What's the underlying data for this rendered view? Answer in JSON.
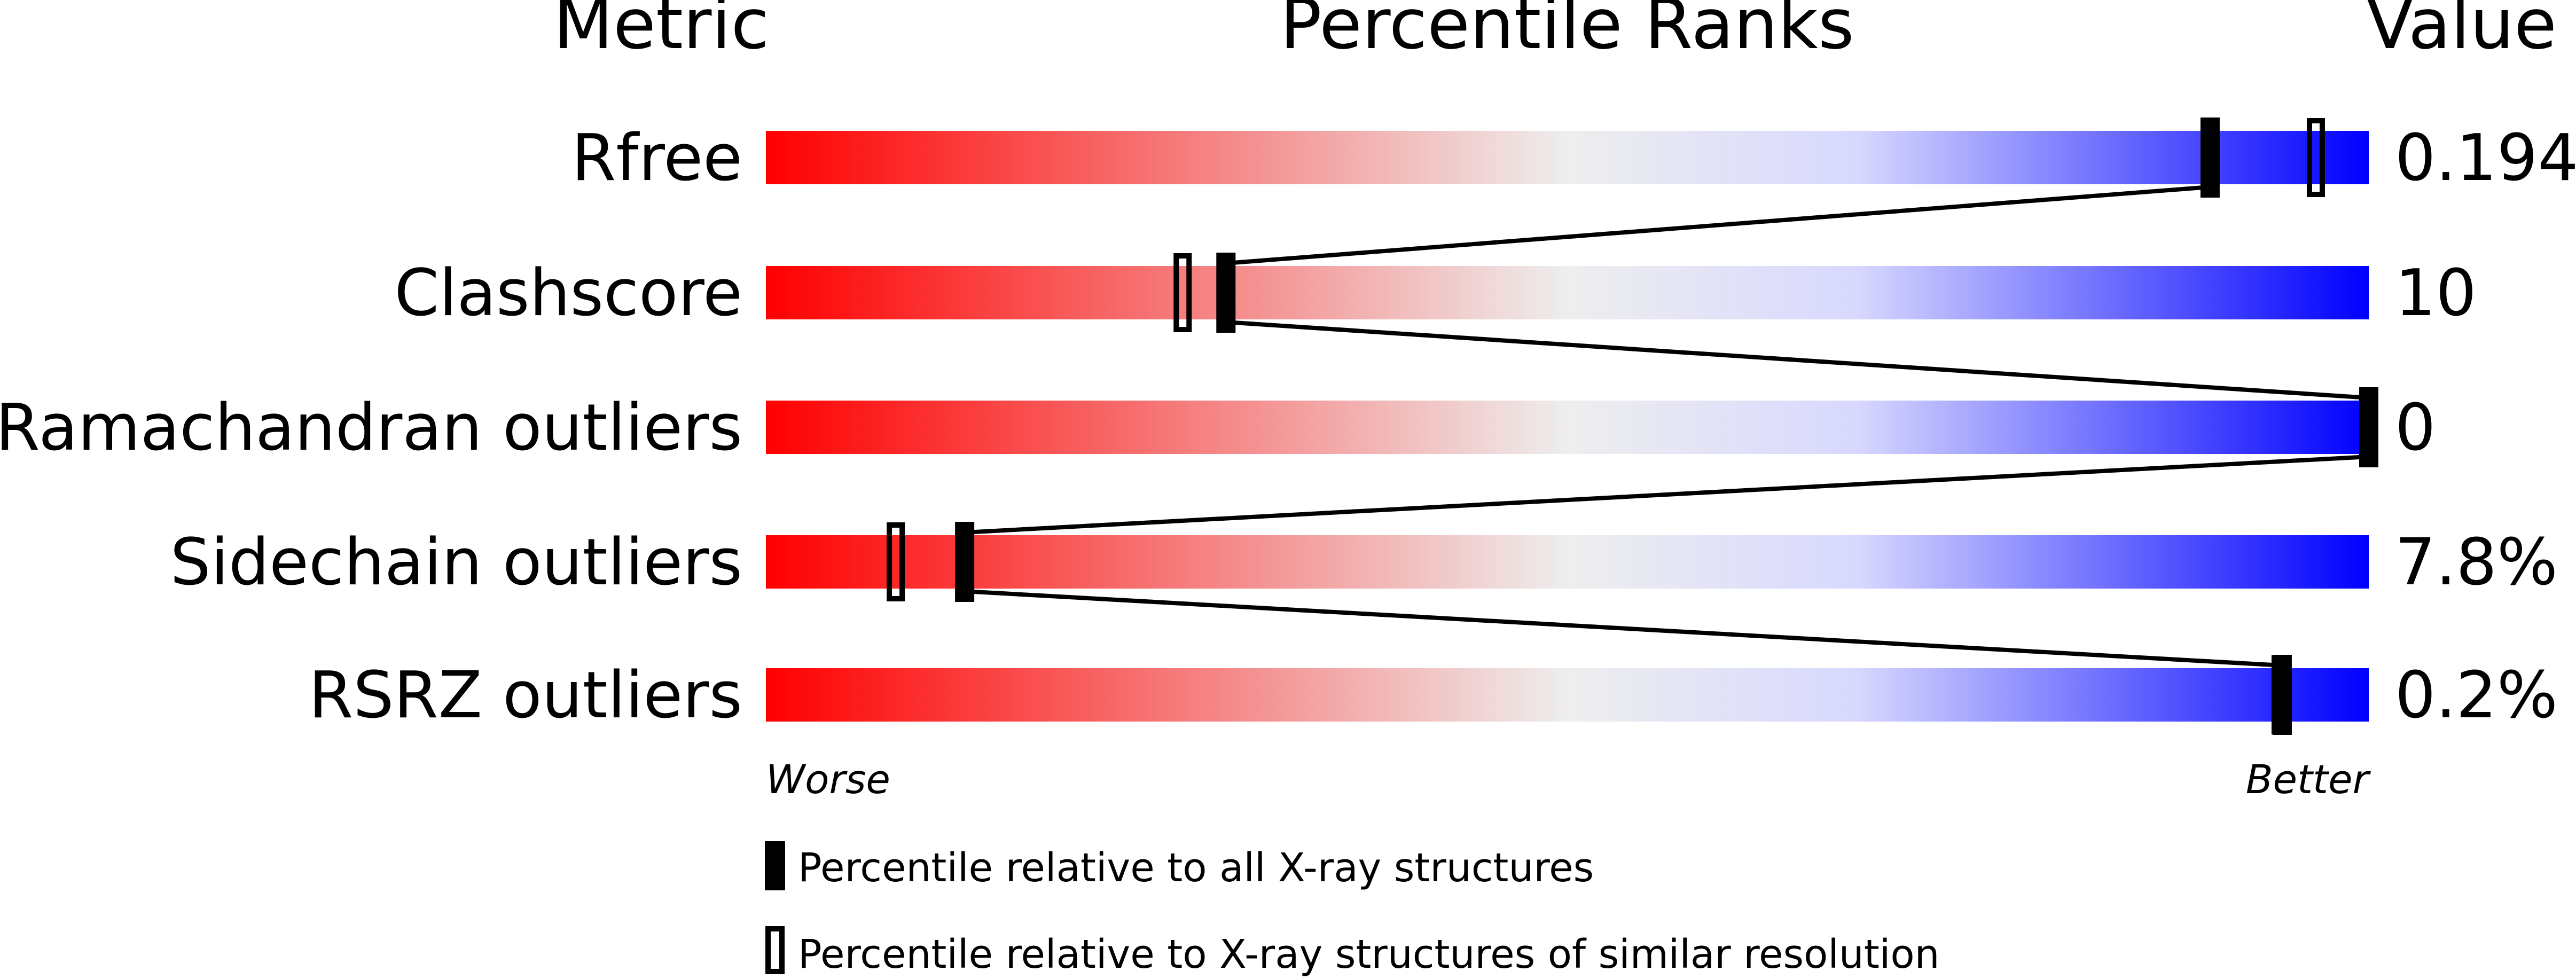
{
  "chart_data": {
    "type": "percentile-slider",
    "headers": {
      "metric": "Metric",
      "ranks": "Percentile Ranks",
      "value": "Value"
    },
    "xlim": [
      0,
      100
    ],
    "axis_labels": {
      "left": "Worse",
      "right": "Better"
    },
    "gradient_colors": [
      "#ff0000",
      "#eeeeee",
      "#d8d8ff",
      "#0000ff"
    ],
    "rows": [
      {
        "metric": "Rfree",
        "value": "0.194",
        "percentile_all": 90.1,
        "percentile_similar": 96.7
      },
      {
        "metric": "Clashscore",
        "value": "10",
        "percentile_all": 28.7,
        "percentile_similar": 26.0
      },
      {
        "metric": "Ramachandran outliers",
        "value": "0",
        "percentile_all": 100,
        "percentile_similar": 100
      },
      {
        "metric": "Sidechain outliers",
        "value": "7.8%",
        "percentile_all": 12.4,
        "percentile_similar": 8.1
      },
      {
        "metric": "RSRZ outliers",
        "value": "0.2%",
        "percentile_all": 94.6,
        "percentile_similar": 94.5
      }
    ],
    "legend": [
      {
        "marker": "filled",
        "label": "Percentile relative to all X-ray structures"
      },
      {
        "marker": "open",
        "label": "Percentile relative to X-ray structures of similar resolution"
      }
    ]
  }
}
